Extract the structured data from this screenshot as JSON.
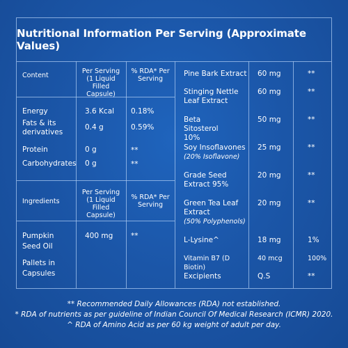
{
  "title": "Nutritional Information Per Serving (Approximate Values)",
  "nutrition": {
    "headers": {
      "content": "Content",
      "per_serving": "Per Serving (1 Liquid Filled Capsule)",
      "rda": "% RDA* Per Serving"
    },
    "rows": [
      {
        "name": "Energy",
        "value": "3.6 Kcal",
        "rda": "0.18%"
      },
      {
        "name": "Fats & its derivatives",
        "value": "0.4 g",
        "rda": "0.59%"
      },
      {
        "name": "Protein",
        "value": "0 g",
        "rda": "**"
      },
      {
        "name": "Carbohydrates",
        "value": "0 g",
        "rda": "**"
      }
    ]
  },
  "ingredients": {
    "headers": {
      "name": "Ingredients",
      "per_serving": "Per Serving (1 Liquid Filled Capsule)",
      "rda": "% RDA* Per Serving"
    },
    "rows": [
      {
        "name": "Pumpkin Seed Oil",
        "value": "400 mg",
        "rda": "**"
      },
      {
        "name": "Pallets in Capsules",
        "value": "",
        "rda": ""
      }
    ]
  },
  "right_table": [
    {
      "name": "Pine Bark Extract",
      "sub": "",
      "value": "60 mg",
      "rda": "**"
    },
    {
      "name": "Stinging Nettle Leaf Extract",
      "sub": "",
      "value": "60 mg",
      "rda": "**"
    },
    {
      "name": "Beta Sitosterol 10%",
      "sub": "",
      "value": "50 mg",
      "rda": "**"
    },
    {
      "name": "Soy Insoflavones",
      "sub": "(20% Isoflavone)",
      "value": "25 mg",
      "rda": "**"
    },
    {
      "name": "Grade Seed Extract 95%",
      "sub": "",
      "value": "20 mg",
      "rda": "**"
    },
    {
      "name": "Green Tea Leaf Extract",
      "sub": "(50% Polyphenols)",
      "value": "20 mg",
      "rda": "**"
    },
    {
      "name": "L-Lysine^",
      "sub": "",
      "value": "18 mg",
      "rda": "1%"
    },
    {
      "name": "Vitamin B7 (D Biotin)",
      "sub": "",
      "value": "40 mcg",
      "rda": "100%"
    },
    {
      "name": "Excipients",
      "sub": "",
      "value": "Q.S",
      "rda": "**"
    }
  ],
  "footnotes": [
    "** Recommended Daily Allowances (RDA) not established.",
    "* RDA of nutrients as per guideline of Indian Council Of Medical Research (ICMR) 2020.",
    "^ RDA of Amino Acid as per 60 kg weight of adult per day."
  ]
}
